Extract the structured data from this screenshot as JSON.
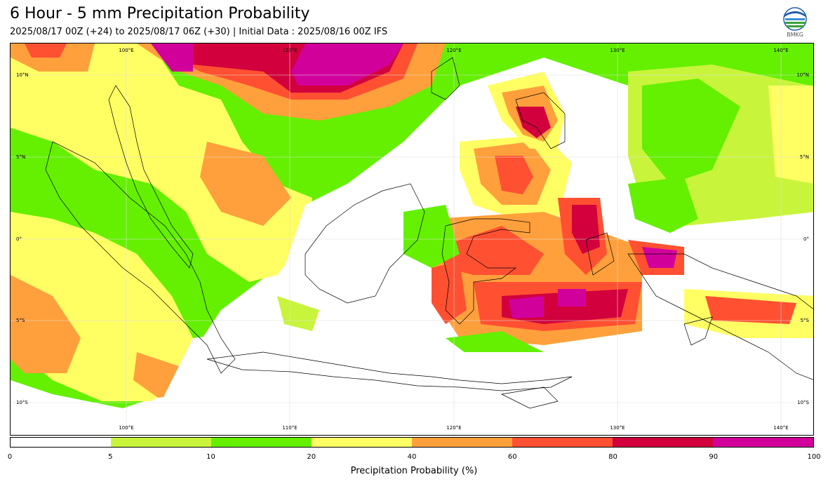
{
  "header": {
    "title": "6 Hour - 5 mm Precipitation Probability",
    "subtitle": "2025/08/17 00Z (+24) to 2025/08/17 06Z (+30) | Initial Data : 2025/08/16 00Z IFS",
    "logo_text": "BMKG"
  },
  "map": {
    "lon_labels": [
      "100°E",
      "110°E",
      "120°E",
      "130°E",
      "140°E"
    ],
    "lat_labels": [
      "10°N",
      "5°N",
      "0°",
      "5°S",
      "10°S"
    ]
  },
  "colorbar": {
    "label": "Precipitation Probability (%)",
    "ticks": [
      "0",
      "5",
      "10",
      "20",
      "40",
      "60",
      "80",
      "90",
      "100"
    ],
    "colors": [
      "#ffffff",
      "#c8f53c",
      "#64f000",
      "#ffff64",
      "#ffa03c",
      "#ff5032",
      "#d2003c",
      "#d2009b"
    ]
  }
}
